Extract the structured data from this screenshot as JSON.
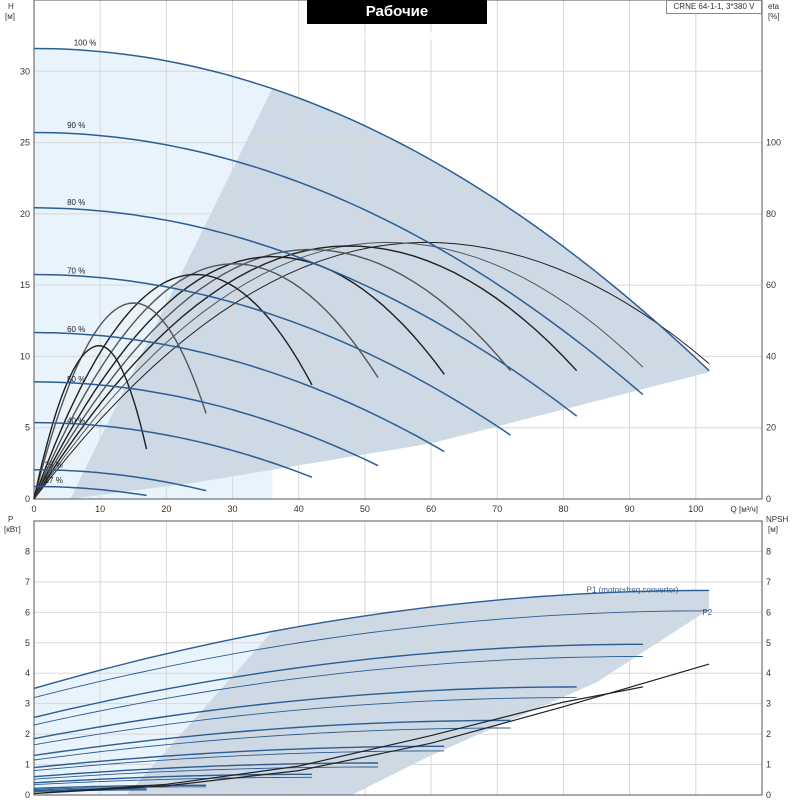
{
  "title": "Рабочие характеристики",
  "model": "CRNE 64-1-1, 3*380 V",
  "colors": {
    "op_area": "#cdd9e5",
    "light_area": "#e8f3fc",
    "curve_blue": "#2c5d93",
    "grid": "#d8d8d8"
  },
  "chart_data": [
    {
      "type": "line",
      "name": "H/eta",
      "xlabel": "Q [м³/ч]",
      "xlim": [
        0,
        110
      ],
      "x_ticks": [
        0,
        10,
        20,
        30,
        40,
        50,
        60,
        70,
        80,
        90,
        100
      ],
      "ylabel_left_symbol": "H",
      "ylabel_left_unit": "[м]",
      "ylim_left": [
        0,
        35
      ],
      "y_ticks_left": [
        0,
        5,
        10,
        15,
        20,
        25,
        30
      ],
      "ylabel_right_symbol": "eta",
      "ylabel_right_unit": "[%]",
      "ylim_right": [
        0,
        140
      ],
      "y_ticks_right": [
        0,
        20,
        40,
        60,
        80,
        100
      ],
      "speed_curves": [
        {
          "label": "100 %",
          "q_max": 102,
          "h0": 31.6
        },
        {
          "label": "90 %",
          "q_max": 92,
          "h0": 25.8
        },
        {
          "label": "80 %",
          "q_max": 82,
          "h0": 20.4
        },
        {
          "label": "70 %",
          "q_max": 72,
          "h0": 15.6
        },
        {
          "label": "60 %",
          "q_max": 62,
          "h0": 11.5
        },
        {
          "label": "50 %",
          "q_max": 52,
          "h0": 8.0
        },
        {
          "label": "40 %",
          "q_max": 42,
          "h0": 5.1
        },
        {
          "label": "25 %",
          "q_max": 26,
          "h0": 2.0
        },
        {
          "label": "17 %",
          "q_max": 17,
          "h0": 0.9
        }
      ],
      "eta_curves": [
        {
          "q_end": 102,
          "peak": 72,
          "end": 38
        },
        {
          "q_end": 92,
          "peak": 72,
          "end": 37
        },
        {
          "q_end": 82,
          "peak": 71,
          "end": 36
        },
        {
          "q_end": 72,
          "peak": 70,
          "end": 36
        },
        {
          "q_end": 62,
          "peak": 68,
          "end": 35
        },
        {
          "q_end": 52,
          "peak": 66,
          "end": 34
        },
        {
          "q_end": 42,
          "peak": 63,
          "end": 32
        },
        {
          "q_end": 26,
          "peak": 55,
          "end": 24
        },
        {
          "q_end": 17,
          "peak": 43,
          "end": 14
        }
      ]
    },
    {
      "type": "line",
      "name": "P/NPSH",
      "xlim": [
        0,
        110
      ],
      "ylabel_left_symbol": "P",
      "ylabel_left_unit": "[кВт]",
      "ylim_left": [
        0,
        9
      ],
      "y_ticks_left": [
        0,
        1,
        2,
        3,
        4,
        5,
        6,
        7,
        8
      ],
      "ylabel_right_symbol": "NPSH",
      "ylabel_right_unit": "[м]",
      "ylim_right": [
        0,
        9
      ],
      "y_ticks_right": [
        0,
        1,
        2,
        3,
        4,
        5,
        6,
        7,
        8
      ],
      "series_labels": {
        "p1": "P1 (motor+freq.converter)",
        "p2": "P2"
      },
      "power_curves": [
        {
          "q_max": 102,
          "p1_start": 3.5,
          "p1_end": 6.72,
          "p2_start": 3.2,
          "p2_end": 6.05
        },
        {
          "q_max": 92,
          "p1_start": 2.55,
          "p1_end": 4.95,
          "p2_start": 2.3,
          "p2_end": 4.55
        },
        {
          "q_max": 82,
          "p1_start": 1.85,
          "p1_end": 3.55,
          "p2_start": 1.65,
          "p2_end": 3.2
        },
        {
          "q_max": 72,
          "p1_start": 1.3,
          "p1_end": 2.45,
          "p2_start": 1.15,
          "p2_end": 2.2
        },
        {
          "q_max": 62,
          "p1_start": 0.9,
          "p1_end": 1.6,
          "p2_start": 0.8,
          "p2_end": 1.45
        },
        {
          "q_max": 52,
          "p1_start": 0.6,
          "p1_end": 1.05,
          "p2_start": 0.52,
          "p2_end": 0.92
        },
        {
          "q_max": 42,
          "p1_start": 0.4,
          "p1_end": 0.68,
          "p2_start": 0.34,
          "p2_end": 0.58
        },
        {
          "q_max": 26,
          "p1_start": 0.22,
          "p1_end": 0.32,
          "p2_start": 0.18,
          "p2_end": 0.27
        },
        {
          "q_max": 17,
          "p1_start": 0.14,
          "p1_end": 0.2,
          "p2_start": 0.11,
          "p2_end": 0.16
        }
      ],
      "npsh_curves": [
        {
          "q": [
            0,
            20,
            40,
            60,
            80,
            102
          ],
          "values": [
            0.05,
            0.3,
            0.8,
            1.7,
            2.9,
            4.3
          ]
        },
        {
          "q": [
            0,
            20,
            40,
            60,
            80,
            92
          ],
          "values": [
            0.05,
            0.35,
            0.95,
            1.95,
            3.05,
            3.55
          ]
        }
      ]
    }
  ]
}
